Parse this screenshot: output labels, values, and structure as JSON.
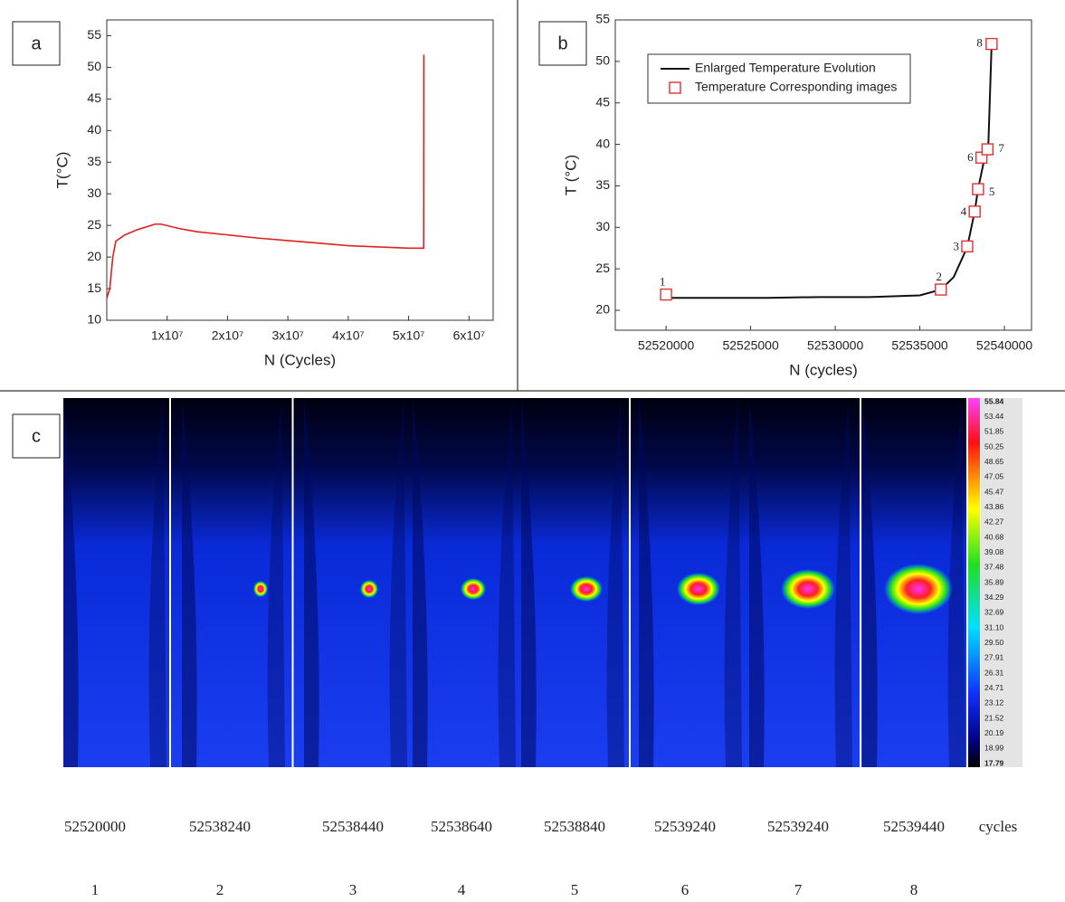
{
  "chart_data": [
    {
      "type": "line",
      "panel_label": "a",
      "x_label": "N (Cycles)",
      "y_label": "T(°C)",
      "xlim": [
        0,
        64000000
      ],
      "ylim": [
        10,
        57.5
      ],
      "xticks": [
        {
          "value": 10000000,
          "label": "1x10⁷"
        },
        {
          "value": 20000000,
          "label": "2x10⁷"
        },
        {
          "value": 30000000,
          "label": "3x10⁷"
        },
        {
          "value": 40000000,
          "label": "4x10⁷"
        },
        {
          "value": 50000000,
          "label": "5x10⁷"
        },
        {
          "value": 60000000,
          "label": "6x10⁷"
        }
      ],
      "yticks": [
        10,
        15,
        20,
        25,
        30,
        35,
        40,
        45,
        50,
        55
      ],
      "series": [
        {
          "color": "#e02020",
          "x": [
            0,
            500000,
            1000000,
            1500000,
            3000000,
            5000000,
            8000000,
            9000000,
            12000000,
            15000000,
            20000000,
            25000000,
            30000000,
            35000000,
            40000000,
            45000000,
            50000000,
            52500000,
            52520000
          ],
          "values": [
            13.5,
            15,
            20,
            22.5,
            23.5,
            24.3,
            25.2,
            25.2,
            24.5,
            24,
            23.5,
            23,
            22.6,
            22.2,
            21.8,
            21.6,
            21.4,
            21.4,
            52
          ]
        }
      ]
    },
    {
      "type": "line",
      "panel_label": "b",
      "x_label": "N (cycles)",
      "y_label": "T (°C)",
      "legend": "upper left",
      "xlim": [
        52517000,
        52541600
      ],
      "ylim": [
        17.6,
        55
      ],
      "xticks": [
        52520000,
        52525000,
        52530000,
        52535000,
        52540000
      ],
      "yticks": [
        20,
        25,
        30,
        35,
        40,
        45,
        50,
        55
      ],
      "series": [
        {
          "name": "Enlarged Temperature Evolution",
          "color": "#111111",
          "x": [
            52520000,
            52523000,
            52526000,
            52529000,
            52532000,
            52535000,
            52536240,
            52537000,
            52537800,
            52538240,
            52538440,
            52538840,
            52539040,
            52539240
          ],
          "values": [
            21.5,
            21.5,
            21.5,
            21.6,
            21.6,
            21.8,
            22.5,
            24,
            27.6,
            31.9,
            34.6,
            38.5,
            39.4,
            52
          ]
        },
        {
          "name": "Temperature Corresponding images",
          "color": "#e03030",
          "marker": "square",
          "x": [
            52520000,
            52536240,
            52537800,
            52538240,
            52538440,
            52538640,
            52539000,
            52539240
          ],
          "values": [
            21.9,
            22.5,
            27.7,
            31.9,
            34.6,
            38.4,
            39.4,
            52.1
          ]
        }
      ],
      "point_labels": [
        "1",
        "2",
        "3",
        "4",
        "5",
        "6",
        "7",
        "8"
      ]
    }
  ],
  "panel_c": {
    "panel_label": "c",
    "colorbar_labels": [
      "55.84",
      "53.44",
      "51.85",
      "50.25",
      "48.65",
      "47.05",
      "45.47",
      "43.86",
      "42.27",
      "40.68",
      "39.08",
      "37.48",
      "35.89",
      "34.29",
      "32.69",
      "31.10",
      "29.50",
      "27.91",
      "26.31",
      "24.71",
      "23.12",
      "21.52",
      "20.19",
      "18.99",
      "17.79"
    ],
    "cycle_labels": [
      "52520000",
      "52538240",
      "52538440",
      "52538640",
      "52538840",
      "52539240",
      "52539240",
      "52539440",
      "cycles"
    ],
    "image_numbers": [
      "1",
      "2",
      "3",
      "4",
      "5",
      "6",
      "7",
      "8"
    ]
  }
}
